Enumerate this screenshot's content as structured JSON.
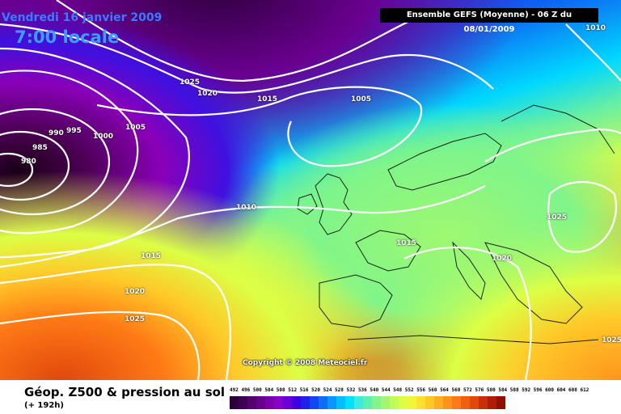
{
  "title": {
    "date": "Vendredi 16 janvier 2009",
    "time": "7:00 locale",
    "run": "Ensemble GEFS (Moyenne)  - 06 Z du 08/01/2009",
    "copyright": "Copyright © 2008 Meteociel.fr"
  },
  "footer": {
    "title": "Géop. Z500 & pression au sol",
    "subtitle": "(+ 192h)"
  },
  "legend": {
    "values": [
      "492",
      "496",
      "500",
      "504",
      "508",
      "512",
      "516",
      "520",
      "524",
      "528",
      "532",
      "536",
      "540",
      "544",
      "548",
      "552",
      "556",
      "560",
      "564",
      "568",
      "572",
      "576",
      "580",
      "584",
      "588",
      "592",
      "596",
      "600",
      "604",
      "608",
      "612"
    ],
    "colors": [
      "#2b0038",
      "#3d0055",
      "#520072",
      "#66008c",
      "#7d00a8",
      "#8a00c8",
      "#6a00d8",
      "#3f00e0",
      "#1e22e8",
      "#1047f0",
      "#0e6ef6",
      "#0a96fa",
      "#05bdfd",
      "#00e0ff",
      "#3fe8e0",
      "#5ff0b0",
      "#7ff58a",
      "#9ff870",
      "#c0fc58",
      "#dcff45",
      "#f2f43a",
      "#ffe030",
      "#ffc828",
      "#ffae22",
      "#ff941c",
      "#ff7a16",
      "#f06010",
      "#e0480c",
      "#c83008",
      "#b01c05",
      "#901000"
    ]
  },
  "isobars": [
    {
      "label": "1010"
    },
    {
      "label": "1025"
    },
    {
      "label": "1020"
    },
    {
      "label": "1015"
    },
    {
      "label": "1005"
    },
    {
      "label": "990"
    },
    {
      "label": "995"
    },
    {
      "label": "1000"
    },
    {
      "label": "1005"
    },
    {
      "label": "985"
    },
    {
      "label": "980"
    },
    {
      "label": "1010"
    },
    {
      "label": "1015"
    },
    {
      "label": "1025"
    },
    {
      "label": "1020"
    },
    {
      "label": "1015"
    },
    {
      "label": "1020"
    },
    {
      "label": "1025"
    },
    {
      "label": "1025"
    }
  ]
}
